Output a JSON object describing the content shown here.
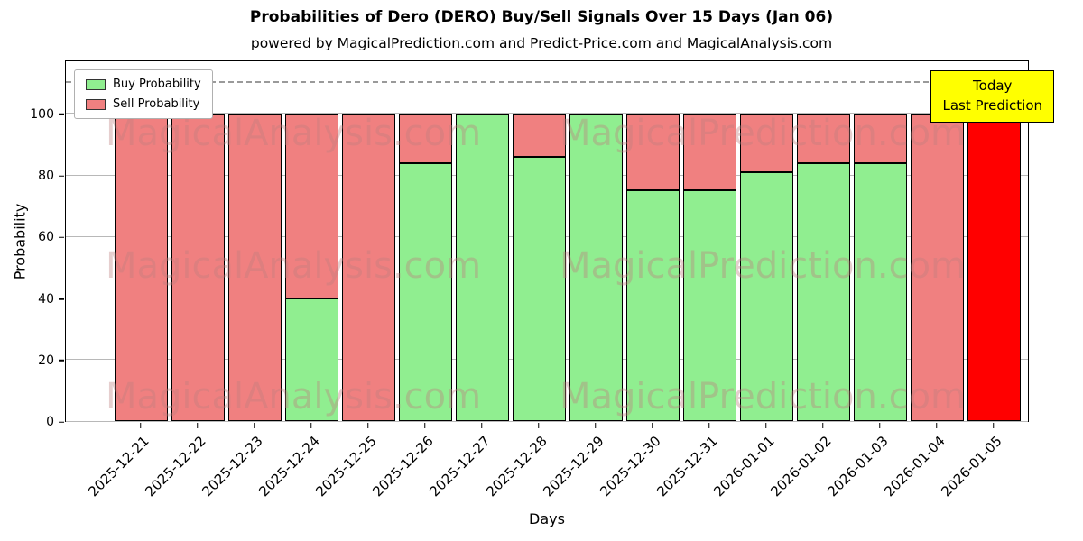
{
  "title": "Probabilities of Dero (DERO) Buy/Sell Signals Over 15 Days (Jan 06)",
  "subtitle": "powered by MagicalPrediction.com and Predict-Price.com and MagicalAnalysis.com",
  "legend": {
    "items": [
      {
        "label": "Buy Probability",
        "color": "#90ee90"
      },
      {
        "label": "Sell Probability",
        "color": "#f08080"
      }
    ]
  },
  "annotation": {
    "line1": "Today",
    "line2": "Last Prediction",
    "bg": "#ffff00"
  },
  "watermarks": [
    "MagicalAnalysis.com",
    "MagicalPrediction.com"
  ],
  "chart_data": {
    "type": "bar",
    "stacked": true,
    "title": "Probabilities of Dero (DERO) Buy/Sell Signals Over 15 Days (Jan 06)",
    "xlabel": "Days",
    "ylabel": "Probability",
    "categories": [
      "2025-12-21",
      "2025-12-22",
      "2025-12-23",
      "2025-12-24",
      "2025-12-25",
      "2025-12-26",
      "2025-12-27",
      "2025-12-28",
      "2025-12-29",
      "2025-12-30",
      "2025-12-31",
      "2026-01-01",
      "2026-01-02",
      "2026-01-03",
      "2026-01-04",
      "2026-01-05"
    ],
    "series": [
      {
        "name": "Buy Probability",
        "color": "#90ee90",
        "values": [
          0,
          0,
          0,
          40,
          0,
          84,
          100,
          86,
          100,
          75,
          75,
          81,
          84,
          84,
          0,
          0
        ]
      },
      {
        "name": "Sell Probability",
        "color": "#f08080",
        "values": [
          100,
          100,
          100,
          60,
          100,
          16,
          0,
          14,
          0,
          25,
          25,
          19,
          16,
          16,
          100,
          100
        ]
      }
    ],
    "today_bar": {
      "index": 15,
      "color": "#ff0000"
    },
    "yticks": [
      0,
      20,
      40,
      60,
      80,
      100
    ],
    "ylim": [
      0,
      117
    ],
    "dashed_line_y": 110,
    "grid": true,
    "legend_position": "upper left"
  }
}
